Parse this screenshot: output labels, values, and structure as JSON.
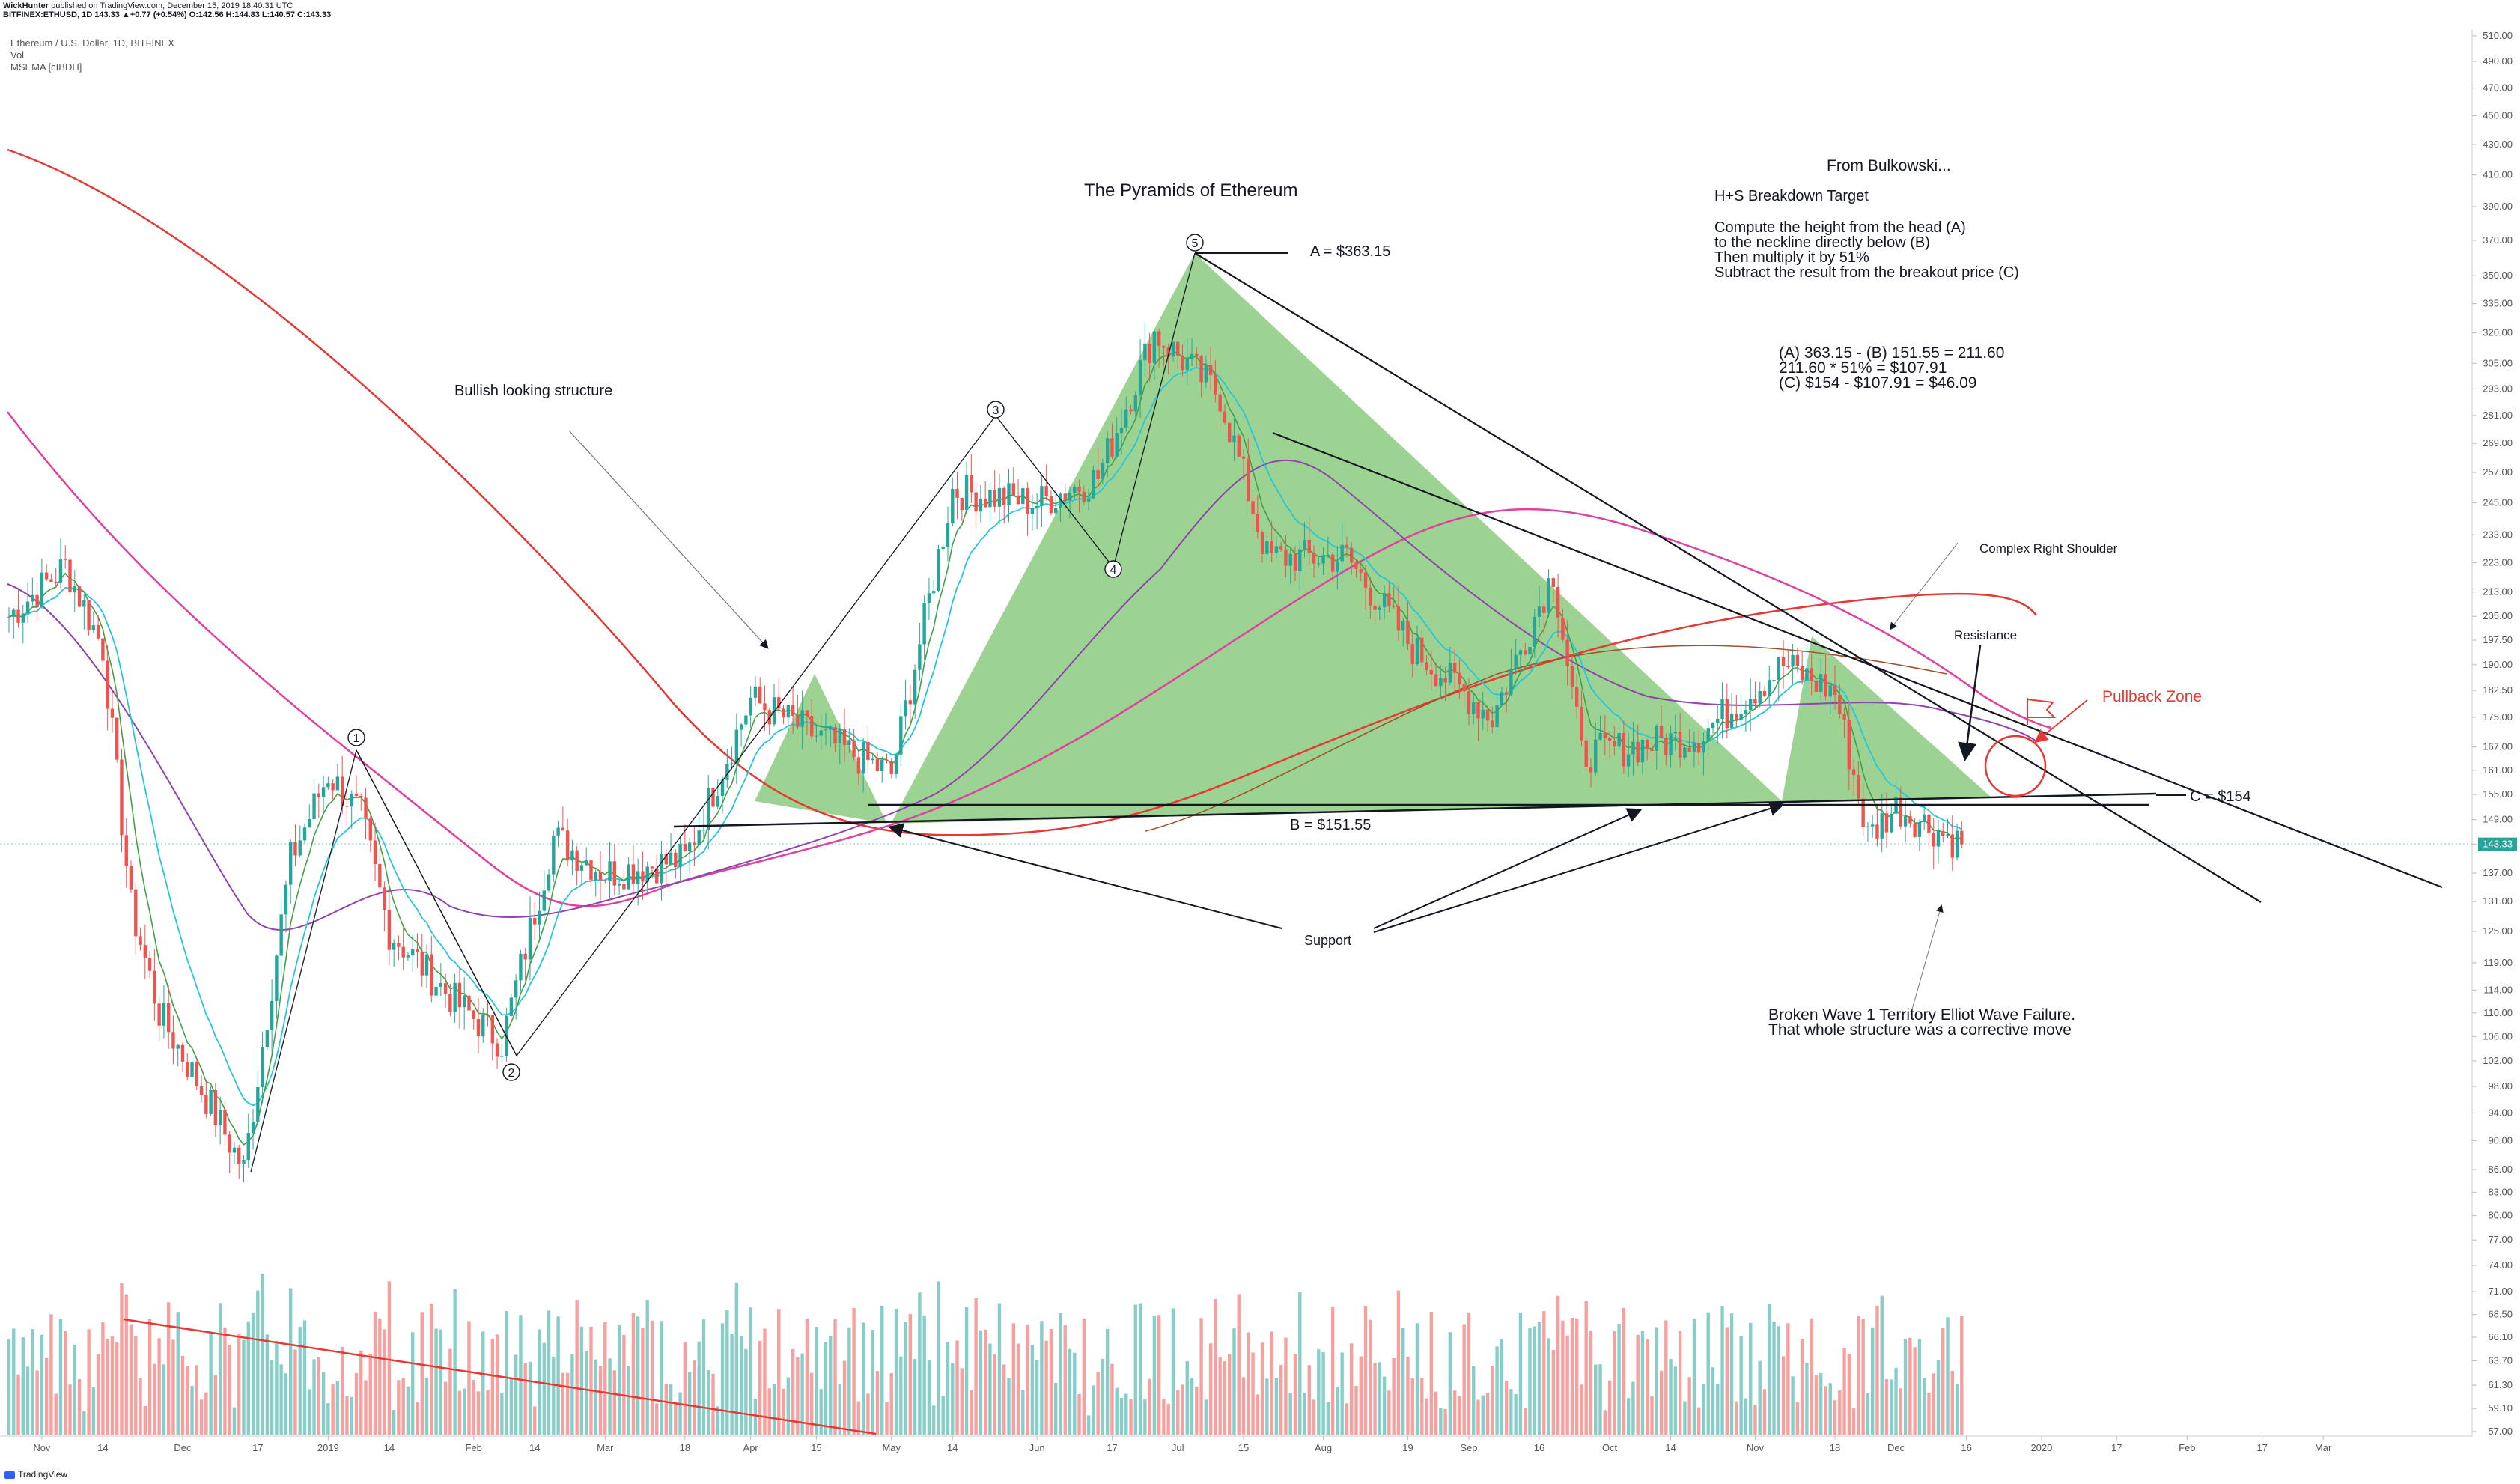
{
  "header": {
    "author": "WickHunter",
    "published": "published on TradingView.com, December 15, 2019 18:40:31 UTC",
    "symbol_line": "BITFINEX:ETHUSD, 1D  143.33  ▲+0.77 (+0.54%)  O:142.56  H:144.83  L:140.57  C:143.33"
  },
  "legend": {
    "title": "Ethereum / U.S. Dollar, 1D, BITFINEX",
    "vol": "Vol",
    "msema": "MSEMA [cIBDH]"
  },
  "footer": {
    "brand": "TradingView"
  },
  "colors": {
    "up": "#26a69a",
    "down": "#ef5350",
    "pyramid": "#5ab54a",
    "last_price": "#26a69a",
    "ema200": "#e53935",
    "ema_mag": "#e040a0",
    "ema_pur": "#8e44ad"
  },
  "chart_data": {
    "type": "candlestick",
    "symbol": "BITFINEX:ETHUSD",
    "interval": "1D",
    "last_price": 143.33,
    "y_axis": {
      "scale": "log",
      "ticks": [
        510.0,
        490.0,
        470.0,
        450.0,
        430.0,
        410.0,
        390.0,
        370.0,
        350.0,
        335.0,
        320.0,
        305.0,
        293.0,
        281.0,
        269.0,
        257.0,
        245.0,
        233.0,
        223.0,
        213.0,
        205.0,
        197.5,
        190.0,
        182.5,
        175.0,
        167.0,
        161.0,
        155.0,
        149.0,
        143.33,
        137.0,
        131.0,
        125.0,
        119.0,
        114.0,
        110.0,
        106.0,
        102.0,
        98.0,
        94.0,
        90.0,
        86.0,
        83.0,
        80.0,
        77.0,
        74.0,
        71.0,
        68.5,
        66.1,
        63.7,
        61.3,
        59.1,
        57.0
      ]
    },
    "x_axis": {
      "ticks": [
        "Nov",
        "14",
        "Dec",
        "17",
        "2019",
        "14",
        "Feb",
        "14",
        "Mar",
        "18",
        "Apr",
        "15",
        "May",
        "14",
        "Jun",
        "17",
        "Jul",
        "15",
        "Aug",
        "19",
        "Sep",
        "16",
        "Oct",
        "14",
        "Nov",
        "18",
        "Dec",
        "16",
        "2020",
        "17",
        "Feb",
        "17",
        "Mar"
      ]
    },
    "price_path": [
      [
        "2018-10-25",
        205
      ],
      [
        "2018-11-06",
        222
      ],
      [
        "2018-11-14",
        195
      ],
      [
        "2018-11-20",
        130
      ],
      [
        "2018-11-26",
        110
      ],
      [
        "2018-12-07",
        95
      ],
      [
        "2018-12-14",
        86
      ],
      [
        "2018-12-24",
        140
      ],
      [
        "2019-01-01",
        160
      ],
      [
        "2019-01-08",
        150
      ],
      [
        "2019-01-14",
        125
      ],
      [
        "2019-01-28",
        112
      ],
      [
        "2019-02-07",
        105
      ],
      [
        "2019-02-18",
        145
      ],
      [
        "2019-03-01",
        137
      ],
      [
        "2019-03-18",
        140
      ],
      [
        "2019-04-01",
        180
      ],
      [
        "2019-04-15",
        170
      ],
      [
        "2019-05-01",
        160
      ],
      [
        "2019-05-14",
        250
      ],
      [
        "2019-06-01",
        245
      ],
      [
        "2019-06-14",
        255
      ],
      [
        "2019-06-26",
        320
      ],
      [
        "2019-07-10",
        290
      ],
      [
        "2019-07-20",
        225
      ],
      [
        "2019-08-06",
        225
      ],
      [
        "2019-08-20",
        195
      ],
      [
        "2019-09-06",
        175
      ],
      [
        "2019-09-19",
        220
      ],
      [
        "2019-09-25",
        165
      ],
      [
        "2019-10-20",
        170
      ],
      [
        "2019-11-07",
        190
      ],
      [
        "2019-11-18",
        182
      ],
      [
        "2019-11-25",
        145
      ],
      [
        "2019-12-01",
        152
      ],
      [
        "2019-12-15",
        143.33
      ]
    ],
    "volume_shown": true,
    "indicators": [
      "Vol",
      "MSEMA [cIBDH]"
    ]
  },
  "annotations": {
    "title": "The Pyramids of Ethereum",
    "bullish": "Bullish looking structure",
    "point_a": "A = $363.15",
    "point_b": "B = $151.55",
    "point_c": "C = $154",
    "support": "Support",
    "resistance": "Resistance",
    "pullback": "Pullback Zone",
    "complex_shoulder": "Complex Right Shoulder",
    "bulkowski": [
      "From Bulkowski...",
      "H+S Breakdown Target",
      "Compute the height from the head (A)",
      "to the neckline directly below (B)",
      "Then multiply it by 51%",
      "Subtract the result from the breakout price (C)"
    ],
    "calc": [
      "(A) 363.15 - (B) 151.55 = 211.60",
      "211.60 * 51% = $107.91",
      "(C) $154 - $107.91 = $46.09"
    ],
    "broken": [
      "Broken Wave 1 Territory Elliot Wave Failure.",
      "That whole structure was a corrective move"
    ],
    "waves": [
      "1",
      "2",
      "3",
      "4",
      "5"
    ]
  }
}
